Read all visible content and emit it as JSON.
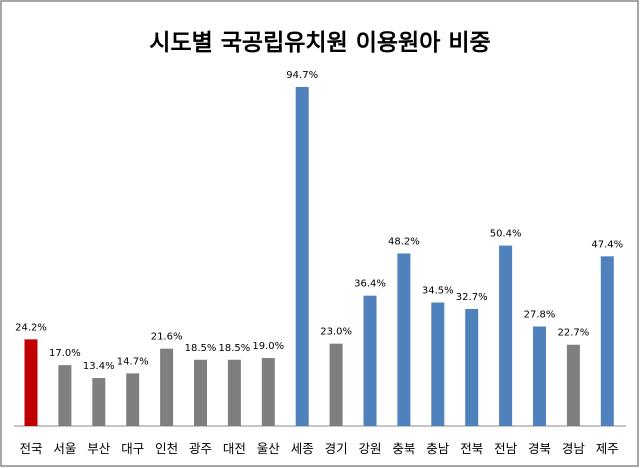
{
  "chart_data": {
    "type": "bar",
    "title": "시도별 국공립유치원 이용원아 비중",
    "xlabel": "",
    "ylabel": "",
    "ylim": [
      0,
      100
    ],
    "grid": false,
    "categories": [
      "전국",
      "서울",
      "부산",
      "대구",
      "인천",
      "광주",
      "대전",
      "울산",
      "세종",
      "경기",
      "강원",
      "충북",
      "충남",
      "전북",
      "전남",
      "경북",
      "경남",
      "제주"
    ],
    "values": [
      24.2,
      17.0,
      13.4,
      14.7,
      21.6,
      18.5,
      18.5,
      19.0,
      94.7,
      23.0,
      36.4,
      48.2,
      34.5,
      32.7,
      50.4,
      27.8,
      22.7,
      47.4
    ],
    "value_labels": [
      "24.2%",
      "17.0%",
      "13.4%",
      "14.7%",
      "21.6%",
      "18.5%",
      "18.5%",
      "19.0%",
      "94.7%",
      "23.0%",
      "36.4%",
      "48.2%",
      "34.5%",
      "32.7%",
      "50.4%",
      "27.8%",
      "22.7%",
      "47.4%"
    ],
    "bar_colors": [
      "#C00000",
      "#7F7F7F",
      "#7F7F7F",
      "#7F7F7F",
      "#7F7F7F",
      "#7F7F7F",
      "#7F7F7F",
      "#7F7F7F",
      "#4F81BD",
      "#7F7F7F",
      "#4F81BD",
      "#4F81BD",
      "#4F81BD",
      "#4F81BD",
      "#4F81BD",
      "#4F81BD",
      "#7F7F7F",
      "#4F81BD"
    ]
  }
}
